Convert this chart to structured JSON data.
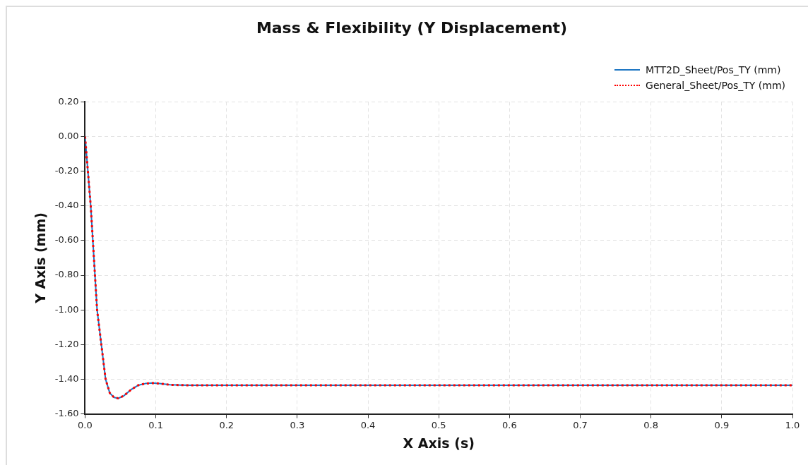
{
  "chart_data": {
    "type": "line",
    "title": "Mass & Flexibility (Y Displacement)",
    "xlabel": "X Axis (s)",
    "ylabel": "Y Axis (mm)",
    "xlim": [
      0,
      1.0
    ],
    "xticks": [
      {
        "value": 0,
        "label": "0.0"
      },
      0.1,
      0.2,
      0.3,
      0.4,
      0.5,
      0.6,
      0.7,
      0.8,
      0.9,
      {
        "value": 1,
        "label": "1.0"
      }
    ],
    "ylim": [
      -1.6,
      0.2
    ],
    "yticks": [
      {
        "value": -1.6,
        "label": "-1.60"
      },
      {
        "value": -1.4,
        "label": "-1.40"
      },
      {
        "value": -1.2,
        "label": "-1.20"
      },
      {
        "value": -1,
        "label": "-1.00"
      },
      {
        "value": -0.8,
        "label": "-0.80"
      },
      {
        "value": -0.6,
        "label": "-0.60"
      },
      {
        "value": -0.4,
        "label": "-0.40"
      },
      {
        "value": -0.2,
        "label": "-0.20"
      },
      {
        "value": 0,
        "label": "0.00"
      },
      {
        "value": 0.2,
        "label": "0.20"
      }
    ],
    "x": [
      0,
      0.004,
      0.008,
      0.011,
      0.014,
      0.017,
      0.023,
      0.029,
      0.035,
      0.041,
      0.047,
      0.055,
      0.065,
      0.075,
      0.085,
      0.095,
      0.105,
      0.12,
      0.15,
      0.3,
      0.5,
      0.7,
      1.0
    ],
    "series": [
      {
        "name": "MTT2D_Sheet/Pos_TY (mm)",
        "color": "#1f77c4",
        "line_style": "solid",
        "values": [
          0,
          -0.2,
          -0.4,
          -0.6,
          -0.8,
          -1.0,
          -1.2,
          -1.4,
          -1.48,
          -1.505,
          -1.51,
          -1.495,
          -1.46,
          -1.435,
          -1.425,
          -1.422,
          -1.425,
          -1.432,
          -1.435,
          -1.435,
          -1.435,
          -1.435,
          -1.435
        ]
      },
      {
        "name": "General_Sheet/Pos_TY (mm)",
        "color": "#ff0000",
        "line_style": "dotted",
        "values": [
          0,
          -0.2,
          -0.4,
          -0.6,
          -0.8,
          -1.0,
          -1.2,
          -1.4,
          -1.48,
          -1.505,
          -1.51,
          -1.495,
          -1.46,
          -1.435,
          -1.425,
          -1.422,
          -1.425,
          -1.432,
          -1.435,
          -1.435,
          -1.435,
          -1.435,
          -1.435
        ]
      }
    ],
    "grid": true,
    "legend": "top right",
    "marker": "none"
  }
}
